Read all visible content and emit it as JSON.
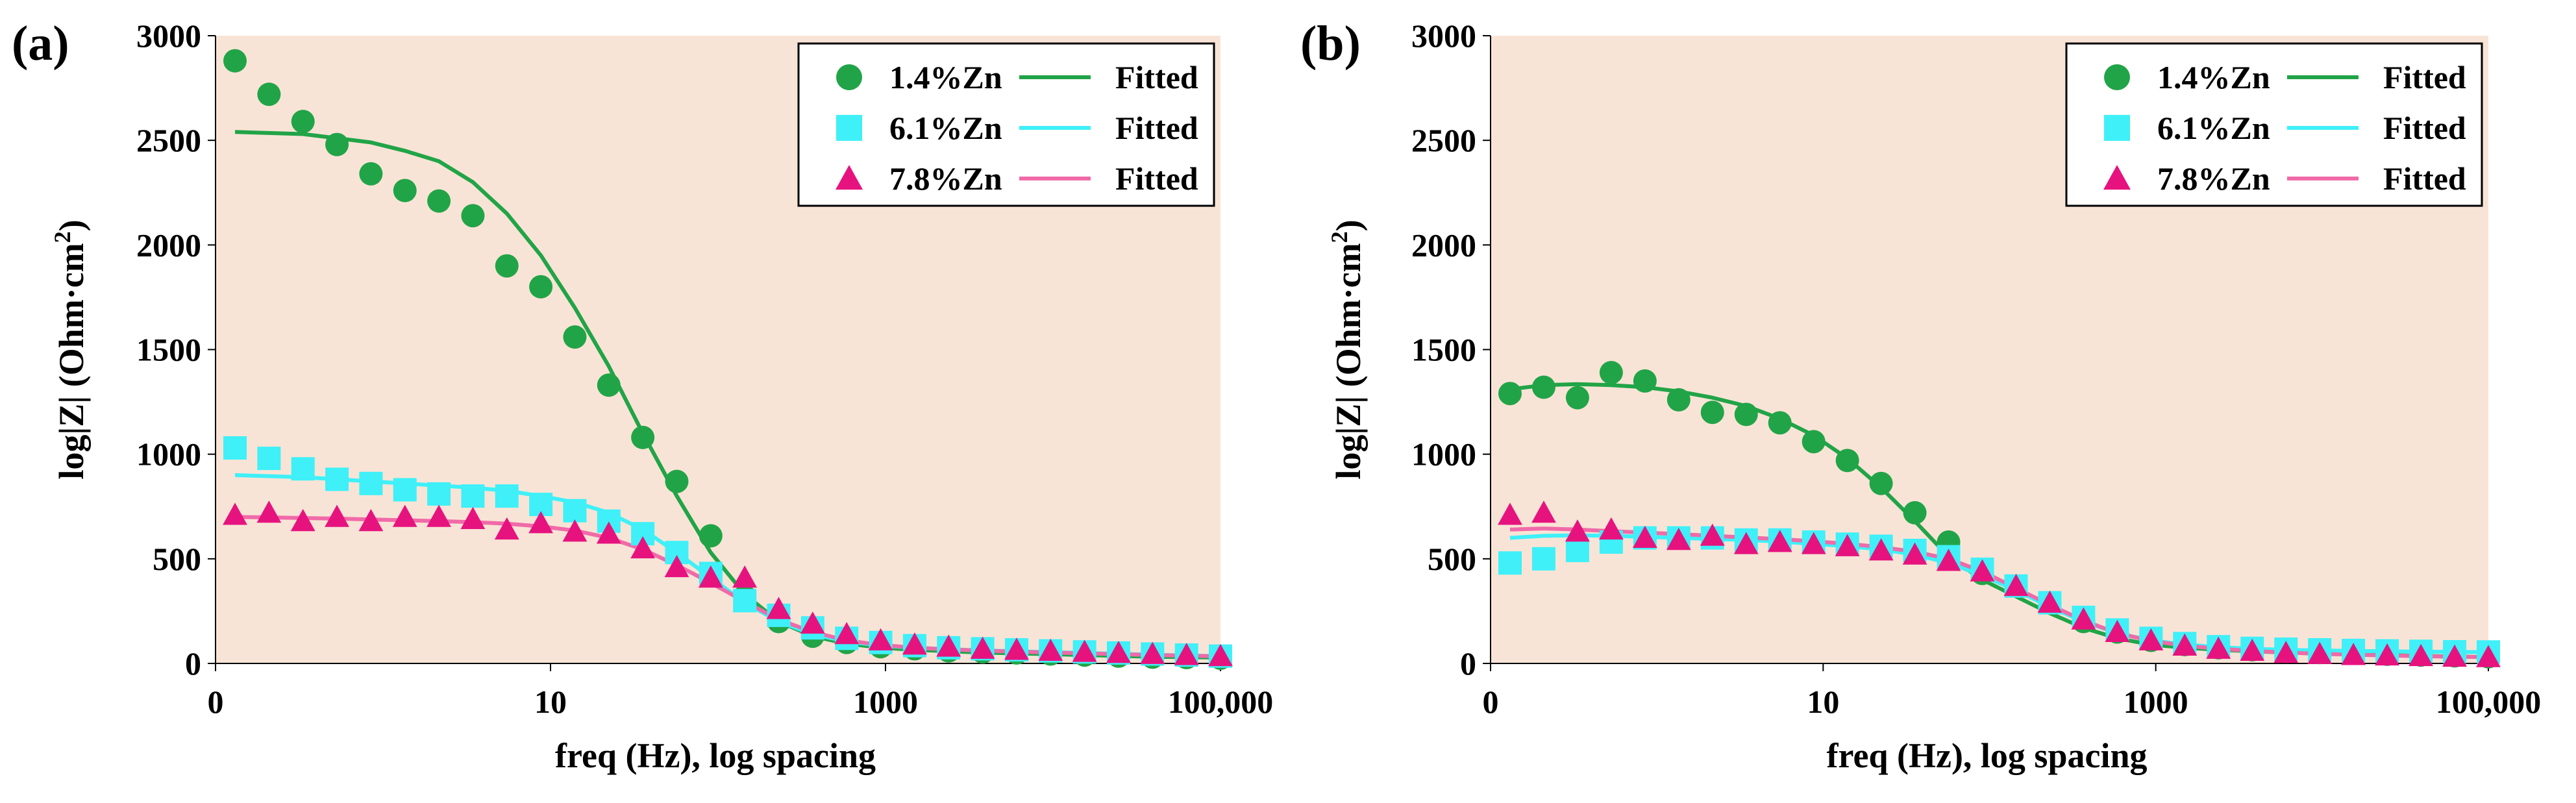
{
  "chart_data": [
    {
      "type": "scatter",
      "panel_label": "(a)",
      "xlabel": "freq (Hz), log spacing",
      "ylabel_main": "log|Z| (Ohm·cm",
      "ylabel_sup": "2",
      "ylabel_close": ")",
      "ylim": [
        0,
        3000
      ],
      "y_ticks": [
        "0",
        "500",
        "1000",
        "1500",
        "2000",
        "2500",
        "3000"
      ],
      "x_ticks": [
        "0",
        "10",
        "1000",
        "100,000"
      ],
      "legend_position": "top-right",
      "background": "#f8e4d6",
      "series": [
        {
          "name": "1.4%Zn",
          "marker": "circle",
          "color": "#21a447",
          "fit_name": "Fitted",
          "fit_color": "#21a447",
          "values": [
            2880,
            2720,
            2590,
            2480,
            2340,
            2260,
            2210,
            2140,
            1900,
            1800,
            1560,
            1330,
            1080,
            870,
            610,
            320,
            200,
            130,
            100,
            80,
            70,
            60,
            55,
            50,
            45,
            40,
            35,
            30,
            28,
            25
          ],
          "fit": [
            2540,
            2535,
            2530,
            2510,
            2490,
            2450,
            2400,
            2300,
            2150,
            1950,
            1700,
            1420,
            1100,
            800,
            530,
            330,
            200,
            130,
            95,
            75,
            65,
            58,
            52,
            48,
            44,
            40,
            36,
            32,
            30,
            28
          ]
        },
        {
          "name": "6.1%Zn",
          "marker": "square",
          "color": "#3ff0f8",
          "fit_name": "Fitted",
          "fit_color": "#3ff0f8",
          "values": [
            1030,
            980,
            930,
            880,
            860,
            830,
            810,
            800,
            800,
            760,
            730,
            680,
            620,
            530,
            430,
            300,
            230,
            170,
            120,
            100,
            85,
            75,
            70,
            65,
            60,
            55,
            50,
            45,
            40,
            35
          ],
          "fit": [
            900,
            895,
            890,
            880,
            870,
            860,
            850,
            840,
            825,
            800,
            770,
            720,
            640,
            530,
            410,
            290,
            200,
            140,
            105,
            85,
            75,
            68,
            62,
            58,
            54,
            50,
            46,
            42,
            38,
            35
          ]
        },
        {
          "name": "7.8%Zn",
          "marker": "triangle",
          "color": "#e6137f",
          "fit_name": "Fitted",
          "fit_color": "#f06aa8",
          "values": [
            710,
            720,
            680,
            700,
            680,
            700,
            700,
            690,
            640,
            670,
            630,
            620,
            550,
            460,
            410,
            410,
            260,
            190,
            140,
            110,
            90,
            80,
            70,
            65,
            60,
            55,
            50,
            45,
            40,
            35
          ],
          "fit": [
            700,
            698,
            695,
            692,
            688,
            684,
            680,
            675,
            668,
            655,
            635,
            600,
            545,
            470,
            385,
            295,
            210,
            150,
            110,
            88,
            75,
            67,
            61,
            56,
            52,
            48,
            44,
            40,
            37,
            34
          ]
        }
      ]
    },
    {
      "type": "scatter",
      "panel_label": "(b)",
      "xlabel": "freq (Hz), log spacing",
      "ylabel_main": "log|Z| (Ohm·cm",
      "ylabel_sup": "2",
      "ylabel_close": ")",
      "ylim": [
        0,
        3000
      ],
      "y_ticks": [
        "0",
        "500",
        "1000",
        "1500",
        "2000",
        "2500",
        "3000"
      ],
      "x_ticks": [
        "0",
        "10",
        "1000",
        "100,000"
      ],
      "legend_position": "top-right",
      "background": "#f8e4d6",
      "series": [
        {
          "name": "1.4%Zn",
          "marker": "circle",
          "color": "#21a447",
          "fit_name": "Fitted",
          "fit_color": "#21a447",
          "values": [
            1290,
            1320,
            1270,
            1390,
            1350,
            1260,
            1200,
            1190,
            1150,
            1060,
            970,
            860,
            720,
            580,
            430,
            370,
            290,
            200,
            150,
            110,
            90,
            75,
            65,
            58,
            52,
            48,
            44,
            40,
            36,
            32
          ],
          "fit": [
            1310,
            1330,
            1335,
            1330,
            1320,
            1300,
            1270,
            1230,
            1170,
            1090,
            980,
            840,
            680,
            510,
            400,
            320,
            240,
            170,
            120,
            90,
            75,
            65,
            58,
            52,
            48,
            44,
            40,
            36,
            33,
            30
          ]
        },
        {
          "name": "6.1%Zn",
          "marker": "square",
          "color": "#3ff0f8",
          "fit_name": "Fitted",
          "fit_color": "#3ff0f8",
          "values": [
            480,
            500,
            540,
            580,
            600,
            600,
            600,
            590,
            590,
            580,
            570,
            560,
            540,
            510,
            450,
            370,
            290,
            220,
            160,
            120,
            95,
            80,
            72,
            68,
            65,
            62,
            60,
            58,
            56,
            55
          ],
          "fit": [
            600,
            610,
            612,
            610,
            605,
            600,
            595,
            590,
            582,
            572,
            560,
            545,
            520,
            480,
            420,
            350,
            270,
            200,
            145,
            110,
            90,
            78,
            70,
            65,
            62,
            60,
            58,
            56,
            55,
            54
          ]
        },
        {
          "name": "7.8%Zn",
          "marker": "triangle",
          "color": "#e6137f",
          "fit_name": "Fitted",
          "fit_color": "#f06aa8",
          "values": [
            710,
            720,
            630,
            640,
            600,
            590,
            610,
            570,
            580,
            570,
            560,
            540,
            520,
            490,
            440,
            370,
            290,
            210,
            150,
            110,
            85,
            70,
            60,
            50,
            45,
            40,
            38,
            35,
            32,
            30
          ],
          "fit": [
            640,
            645,
            640,
            632,
            625,
            618,
            610,
            602,
            594,
            584,
            572,
            556,
            534,
            500,
            440,
            360,
            280,
            205,
            145,
            108,
            85,
            70,
            60,
            52,
            46,
            42,
            38,
            35,
            32,
            30
          ]
        }
      ]
    }
  ]
}
